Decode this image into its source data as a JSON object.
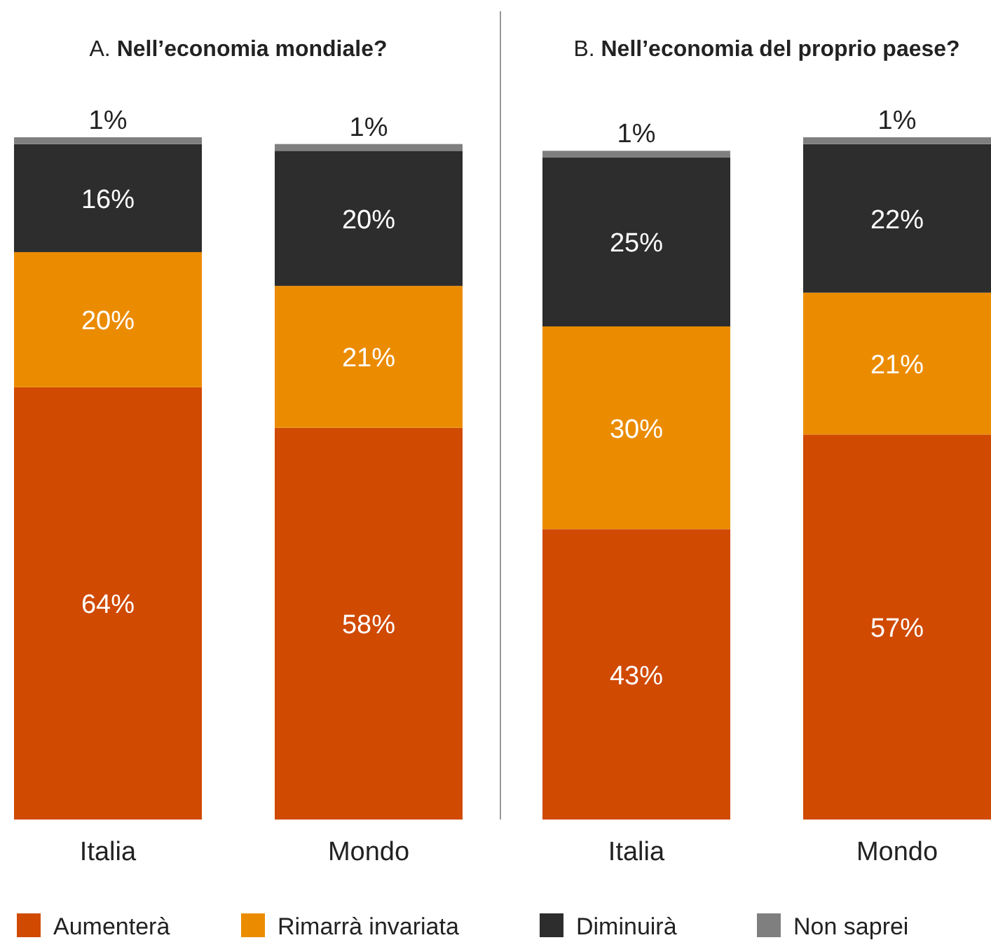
{
  "chart_data": [
    {
      "type": "bar",
      "title": "A. Nell’economia mondiale?",
      "categories": [
        "Italia",
        "Mondo"
      ],
      "stacked": true,
      "legend": "bottom",
      "series": [
        {
          "name": "Aumenterà",
          "color": "#d04a02",
          "values": [
            64,
            58
          ],
          "value_labels": [
            "64%",
            "58%"
          ]
        },
        {
          "name": "Rimarrà invariata",
          "color": "#eb8c00",
          "values": [
            20,
            21
          ],
          "value_labels": [
            "20%",
            "21%"
          ]
        },
        {
          "name": "Diminuirà",
          "color": "#2d2d2d",
          "values": [
            16,
            20
          ],
          "value_labels": [
            "16%",
            "20%"
          ]
        },
        {
          "name": "Non saprei",
          "color": "#7f7f7f",
          "values": [
            1,
            1
          ],
          "value_labels": [
            "1%",
            "1%"
          ]
        }
      ]
    },
    {
      "type": "bar",
      "title": "B. Nell’economia del proprio paese?",
      "categories": [
        "Italia",
        "Mondo"
      ],
      "stacked": true,
      "series": [
        {
          "color": "#d04a02",
          "values": [
            43,
            57
          ],
          "value_labels": [
            "43%",
            "57%"
          ]
        },
        {
          "color": "#eb8c00",
          "values": [
            30,
            21
          ],
          "value_labels": [
            "30%",
            "21%"
          ]
        },
        {
          "color": "#2d2d2d",
          "values": [
            25,
            22
          ],
          "value_labels": [
            "25%",
            "22%"
          ]
        },
        {
          "color": "#7f7f7f",
          "values": [
            1,
            1
          ],
          "value_labels": [
            "1%",
            "1%"
          ]
        }
      ]
    }
  ]
}
